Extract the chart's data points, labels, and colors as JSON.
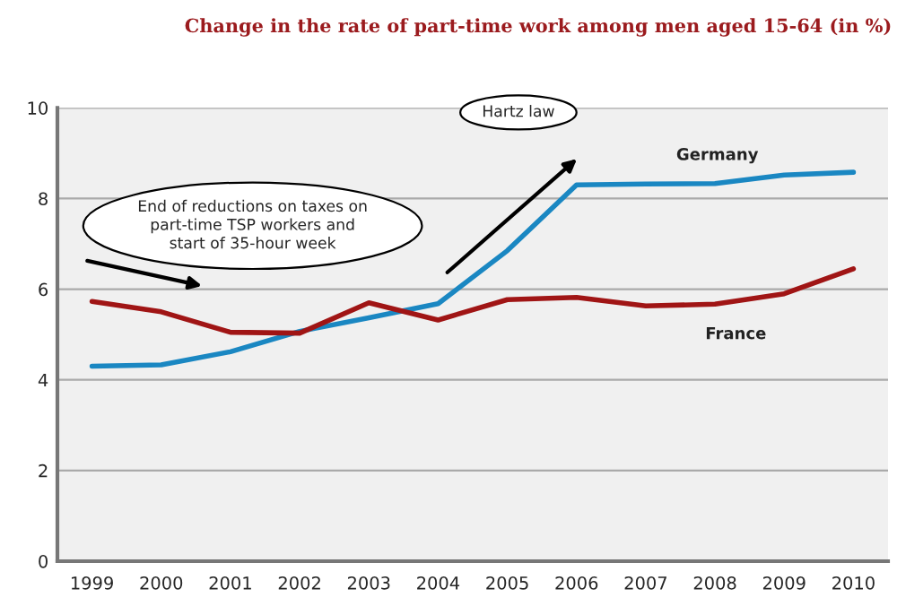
{
  "chart_data": {
    "type": "line",
    "title": "Change in the rate of part-time work among men aged 15-64 (in %)",
    "categories": [
      "1999",
      "2000",
      "2001",
      "2002",
      "2003",
      "2004",
      "2005",
      "2006",
      "2007",
      "2008",
      "2009",
      "2010"
    ],
    "series": [
      {
        "name": "Germany",
        "color": "#1a87c2",
        "values": [
          4.3,
          4.33,
          4.62,
          5.07,
          5.37,
          5.68,
          6.85,
          8.3,
          8.32,
          8.33,
          8.52,
          8.58
        ]
      },
      {
        "name": "France",
        "color": "#a01515",
        "values": [
          5.73,
          5.5,
          5.05,
          5.03,
          5.7,
          5.32,
          5.77,
          5.82,
          5.63,
          5.67,
          5.9,
          6.45
        ]
      }
    ],
    "annotations": [
      "End of reductions on taxes on\npart-time TSP workers and\nstart of 35-hour week",
      "Hartz law"
    ],
    "ylim": [
      0,
      10
    ],
    "yticks": [
      0,
      2,
      4,
      6,
      8,
      10
    ],
    "grid": "y",
    "legend": false,
    "marker": "none",
    "line_style": "solid"
  }
}
